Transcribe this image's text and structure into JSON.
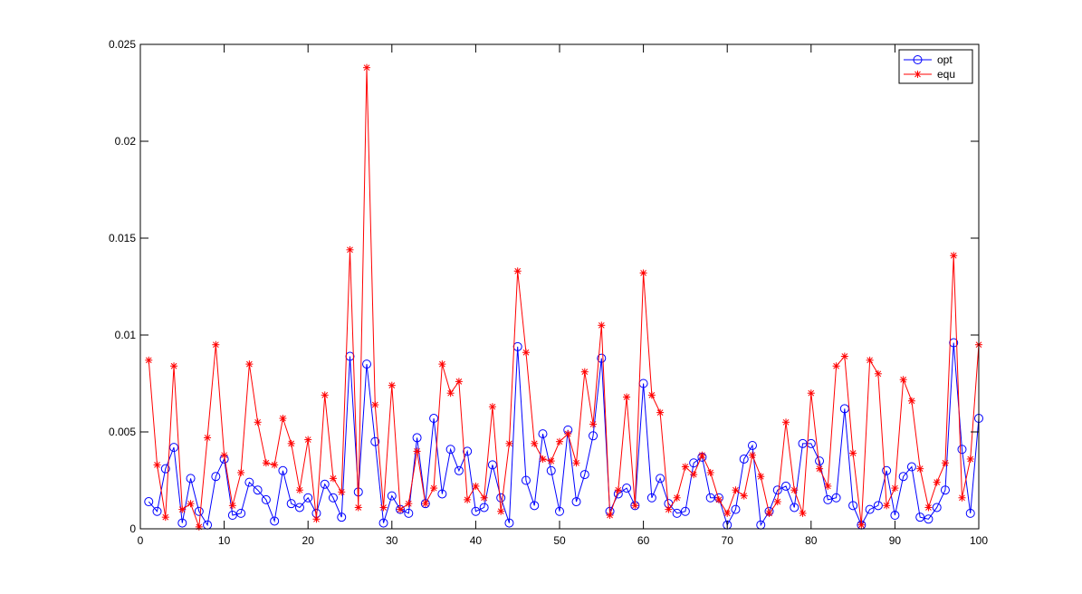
{
  "chart_data": {
    "type": "line",
    "title": "",
    "xlabel": "",
    "ylabel": "",
    "xlim": [
      0,
      100
    ],
    "ylim": [
      0,
      0.025
    ],
    "x_ticks": [
      0,
      10,
      20,
      30,
      40,
      50,
      60,
      70,
      80,
      90,
      100
    ],
    "y_ticks": [
      0,
      0.005,
      0.01,
      0.015,
      0.02,
      0.025
    ],
    "x_tick_labels": [
      "0",
      "10",
      "20",
      "30",
      "40",
      "50",
      "60",
      "70",
      "80",
      "90",
      "100"
    ],
    "y_tick_labels": [
      "0",
      "0.005",
      "0.01",
      "0.015",
      "0.02",
      "0.025"
    ],
    "grid": false,
    "legend_position": "top-right",
    "series": [
      {
        "name": "opt",
        "color": "#0000ff",
        "marker": "circle",
        "x": [
          1,
          2,
          3,
          4,
          5,
          6,
          7,
          8,
          9,
          10,
          11,
          12,
          13,
          14,
          15,
          16,
          17,
          18,
          19,
          20,
          21,
          22,
          23,
          24,
          25,
          26,
          27,
          28,
          29,
          30,
          31,
          32,
          33,
          34,
          35,
          36,
          37,
          38,
          39,
          40,
          41,
          42,
          43,
          44,
          45,
          46,
          47,
          48,
          49,
          50,
          51,
          52,
          53,
          54,
          55,
          56,
          57,
          58,
          59,
          60,
          61,
          62,
          63,
          64,
          65,
          66,
          67,
          68,
          69,
          70,
          71,
          72,
          73,
          74,
          75,
          76,
          77,
          78,
          79,
          80,
          81,
          82,
          83,
          84,
          85,
          86,
          87,
          88,
          89,
          90,
          91,
          92,
          93,
          94,
          95,
          96,
          97,
          98,
          99,
          100
        ],
        "values": [
          0.0014,
          0.0009,
          0.0031,
          0.0042,
          0.0003,
          0.0026,
          0.0009,
          0.0002,
          0.0027,
          0.0036,
          0.0007,
          0.0008,
          0.0024,
          0.002,
          0.0015,
          0.0004,
          0.003,
          0.0013,
          0.0011,
          0.0016,
          0.0008,
          0.0023,
          0.0016,
          0.0006,
          0.0089,
          0.0019,
          0.0085,
          0.0045,
          0.0003,
          0.0017,
          0.001,
          0.0008,
          0.0047,
          0.0013,
          0.0057,
          0.0018,
          0.0041,
          0.003,
          0.004,
          0.0009,
          0.0011,
          0.0033,
          0.0016,
          0.0003,
          0.0094,
          0.0025,
          0.0012,
          0.0049,
          0.003,
          0.0009,
          0.0051,
          0.0014,
          0.0028,
          0.0048,
          0.0088,
          0.0009,
          0.0018,
          0.0021,
          0.0012,
          0.0075,
          0.0016,
          0.0026,
          0.0013,
          0.0008,
          0.0009,
          0.0034,
          0.0037,
          0.0016,
          0.0016,
          0.0002,
          0.001,
          0.0036,
          0.0043,
          0.0002,
          0.0009,
          0.002,
          0.0022,
          0.0011,
          0.0044,
          0.0044,
          0.0035,
          0.0015,
          0.0016,
          0.0062,
          0.0012,
          0.0002,
          0.001,
          0.0012,
          0.003,
          0.0007,
          0.0027,
          0.0032,
          0.0006,
          0.0005,
          0.0011,
          0.002,
          0.0096,
          0.0041,
          0.0008,
          0.0057
        ]
      },
      {
        "name": "equ",
        "color": "#ff0000",
        "marker": "asterisk",
        "x": [
          1,
          2,
          3,
          4,
          5,
          6,
          7,
          8,
          9,
          10,
          11,
          12,
          13,
          14,
          15,
          16,
          17,
          18,
          19,
          20,
          21,
          22,
          23,
          24,
          25,
          26,
          27,
          28,
          29,
          30,
          31,
          32,
          33,
          34,
          35,
          36,
          37,
          38,
          39,
          40,
          41,
          42,
          43,
          44,
          45,
          46,
          47,
          48,
          49,
          50,
          51,
          52,
          53,
          54,
          55,
          56,
          57,
          58,
          59,
          60,
          61,
          62,
          63,
          64,
          65,
          66,
          67,
          68,
          69,
          70,
          71,
          72,
          73,
          74,
          75,
          76,
          77,
          78,
          79,
          80,
          81,
          82,
          83,
          84,
          85,
          86,
          87,
          88,
          89,
          90,
          91,
          92,
          93,
          94,
          95,
          96,
          97,
          98,
          99,
          100
        ],
        "values": [
          0.0087,
          0.0033,
          0.0006,
          0.0084,
          0.001,
          0.0013,
          0.0001,
          0.0047,
          0.0095,
          0.0038,
          0.0012,
          0.0029,
          0.0085,
          0.0055,
          0.0034,
          0.0033,
          0.0057,
          0.0044,
          0.002,
          0.0046,
          0.0005,
          0.0069,
          0.0026,
          0.0019,
          0.0144,
          0.0011,
          0.0238,
          0.0064,
          0.0011,
          0.0074,
          0.001,
          0.0013,
          0.004,
          0.0013,
          0.0021,
          0.0085,
          0.007,
          0.0076,
          0.0015,
          0.0022,
          0.0016,
          0.0063,
          0.0009,
          0.0044,
          0.0133,
          0.0091,
          0.0044,
          0.0036,
          0.0035,
          0.0045,
          0.0049,
          0.0034,
          0.0081,
          0.0054,
          0.0105,
          0.0007,
          0.002,
          0.0068,
          0.0012,
          0.0132,
          0.0069,
          0.006,
          0.001,
          0.0016,
          0.0032,
          0.0028,
          0.0038,
          0.0029,
          0.0015,
          0.0008,
          0.002,
          0.0017,
          0.0038,
          0.0027,
          0.0008,
          0.0014,
          0.0055,
          0.002,
          0.0008,
          0.007,
          0.0031,
          0.0022,
          0.0084,
          0.0089,
          0.0039,
          0.0002,
          0.0087,
          0.008,
          0.0012,
          0.0021,
          0.0077,
          0.0066,
          0.0031,
          0.0011,
          0.0024,
          0.0034,
          0.0141,
          0.0016,
          0.0036,
          0.0095
        ]
      }
    ]
  }
}
